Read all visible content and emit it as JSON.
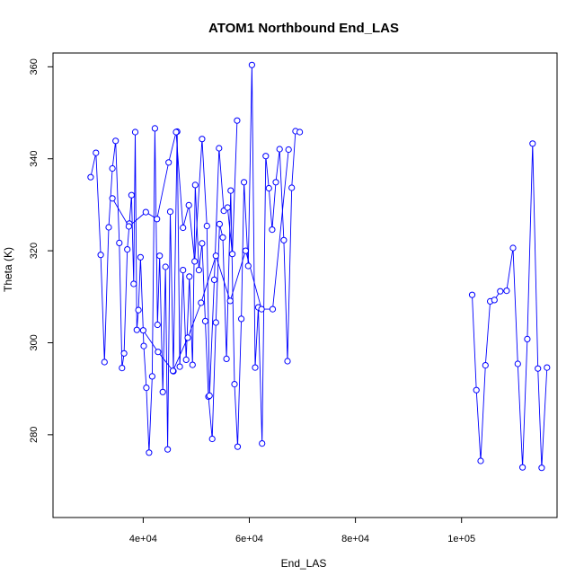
{
  "chart_data": {
    "type": "line",
    "title": "ATOM1 Northbound End_LAS",
    "xlabel": "End_LAS",
    "ylabel": "Theta (K)",
    "xlim": [
      23000,
      118000
    ],
    "ylim": [
      262,
      363
    ],
    "x_ticks": [
      {
        "value": 40000,
        "label": "4e+04"
      },
      {
        "value": 60000,
        "label": "6e+04"
      },
      {
        "value": 80000,
        "label": "8e+04"
      },
      {
        "value": 100000,
        "label": "1e+05"
      }
    ],
    "y_ticks": [
      {
        "value": 280,
        "label": "280"
      },
      {
        "value": 300,
        "label": "300"
      },
      {
        "value": 320,
        "label": "320"
      },
      {
        "value": 340,
        "label": "340"
      },
      {
        "value": 360,
        "label": "360"
      }
    ],
    "grid": false,
    "markers": "open-circle",
    "color": "#0000ff",
    "series": [
      {
        "x": [
          30100,
          31100,
          32000,
          32700,
          33500,
          34200,
          34800,
          35500,
          36000,
          36400,
          37000,
          37400,
          37800,
          38200,
          38500,
          38800,
          39100,
          39500,
          40100,
          40600,
          41100,
          41700,
          42200,
          42700,
          43100,
          43700,
          44200,
          44600,
          45100,
          45700,
          46400,
          46900,
          47500,
          48100,
          48700,
          49300,
          49800,
          50500,
          51100,
          51700,
          52300,
          53000,
          53700,
          54400,
          55000,
          55700,
          56500,
          57200,
          57800,
          58500,
          59000,
          59800,
          60500,
          61100,
          61700,
          62400,
          63100,
          63700,
          64300,
          65000,
          65700,
          66500,
          67200,
          68000,
          68700,
          69500
        ],
        "y": [
          336.0,
          341.3,
          319.1,
          295.8,
          325.1,
          337.9,
          343.9,
          321.7,
          294.5,
          297.7,
          320.3,
          325.9,
          332.1,
          312.8,
          345.8,
          302.8,
          307.1,
          318.6,
          299.3,
          290.2,
          276.1,
          292.7,
          346.6,
          303.9,
          318.9,
          289.3,
          316.5,
          276.8,
          328.5,
          293.8,
          345.9,
          294.8,
          315.8,
          296.3,
          314.4,
          295.2,
          334.3,
          315.8,
          321.6,
          304.7,
          288.3,
          279.1,
          304.4,
          325.8,
          322.9,
          296.5,
          333.1,
          291.0,
          277.4,
          305.2,
          334.9,
          316.7,
          360.4,
          294.6,
          307.7,
          278.1,
          340.6,
          333.6,
          324.6,
          334.9,
          342.1,
          322.3,
          296.0,
          333.7,
          346.0,
          345.8
        ]
      },
      {
        "x": [
          34200,
          37300,
          40500,
          42600,
          44800,
          46200,
          47500,
          48600,
          49700,
          51100,
          52000,
          52500,
          53400,
          54300,
          55200,
          55900,
          56800,
          57700
        ],
        "y": [
          331.4,
          325.3,
          328.4,
          326.9,
          339.2,
          345.8,
          325.0,
          329.9,
          317.7,
          344.3,
          325.4,
          288.5,
          313.7,
          342.3,
          328.7,
          329.4,
          319.3,
          348.3
        ]
      },
      {
        "x": [
          40000,
          42800,
          45600,
          48400,
          50900,
          53700,
          56400,
          59300,
          62300,
          64400,
          67400
        ],
        "y": [
          302.7,
          298.0,
          293.9,
          301.1,
          308.7,
          318.9,
          309.1,
          320.0,
          307.3,
          307.3,
          342.0
        ]
      },
      {
        "x": [
          102000,
          102800,
          103600,
          104500,
          105400,
          106200,
          107300,
          108500,
          109700,
          110600,
          111500,
          112400,
          113400,
          114400,
          115100,
          116100
        ],
        "y": [
          310.4,
          289.7,
          274.3,
          295.1,
          309.0,
          309.3,
          311.2,
          311.3,
          320.6,
          295.4,
          272.9,
          300.8,
          343.3,
          294.4,
          272.8,
          294.6
        ]
      }
    ]
  }
}
